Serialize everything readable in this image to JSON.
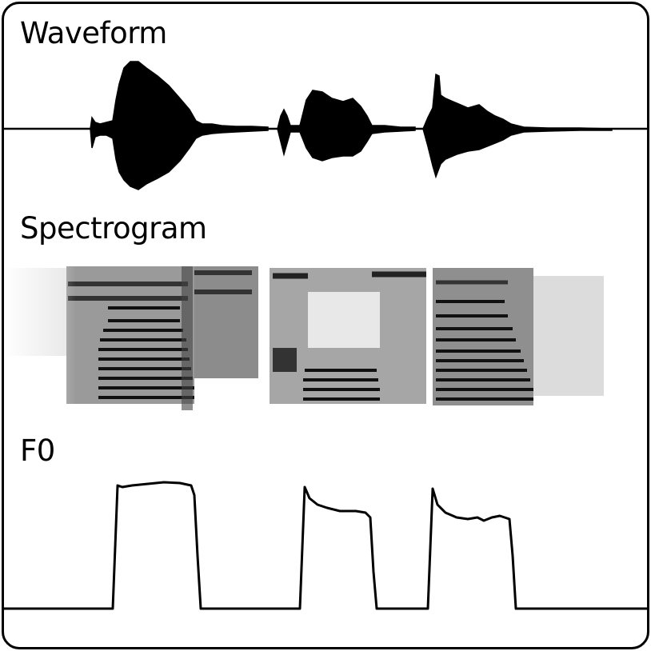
{
  "labels": {
    "waveform": "Waveform",
    "spectrogram": "Spectrogram",
    "f0": "F0"
  },
  "colors": {
    "ink": "#000000",
    "background": "#ffffff",
    "frame": "#000000"
  }
}
